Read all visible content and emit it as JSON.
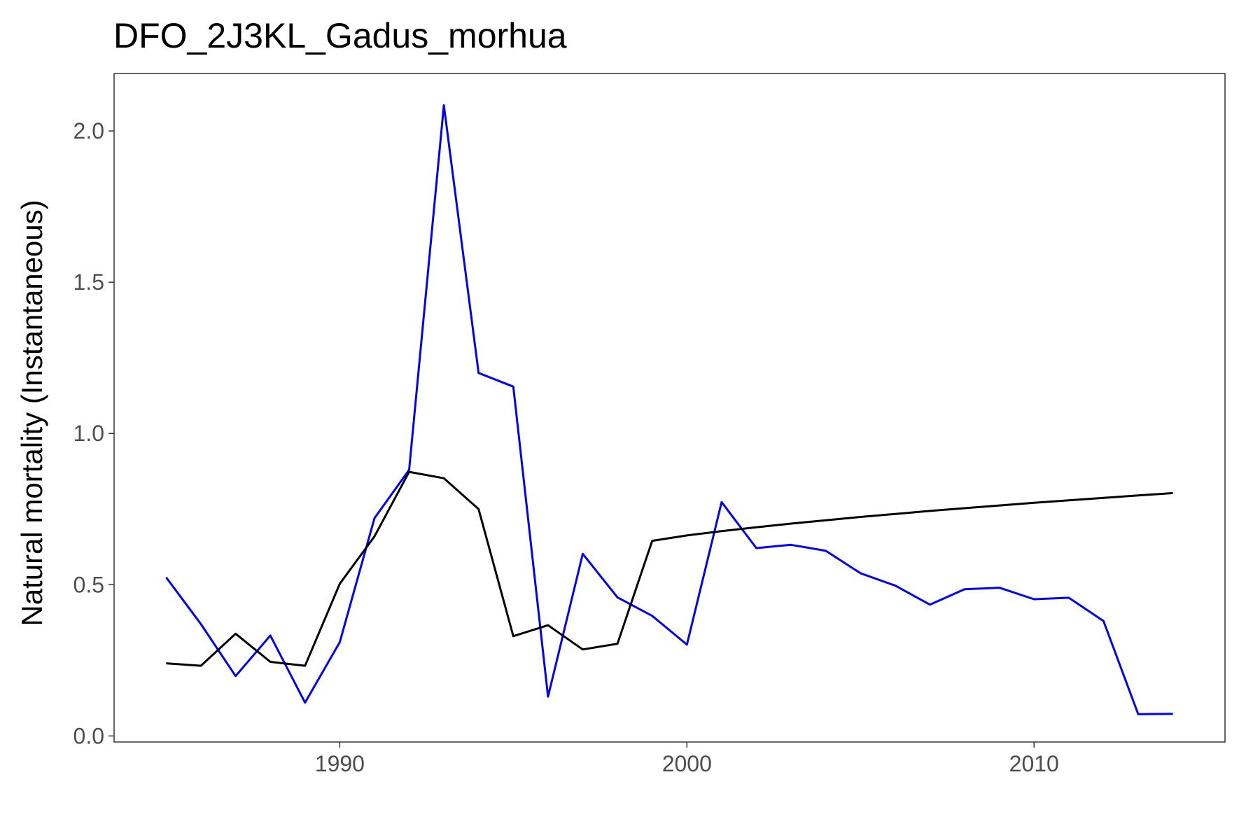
{
  "chart_data": {
    "type": "line",
    "title": "DFO_2J3KL_Gadus_morhua",
    "xlabel": "",
    "ylabel": "Natural mortality (Instantaneous)",
    "xlim": [
      1983.5,
      2015.5
    ],
    "ylim": [
      -0.02,
      2.19
    ],
    "x_ticks": [
      1990,
      2000,
      2010
    ],
    "y_ticks": [
      0.0,
      0.5,
      1.0,
      1.5,
      2.0
    ],
    "x_tick_labels": [
      "1990",
      "2000",
      "2010"
    ],
    "y_tick_labels": [
      "0.0",
      "0.5",
      "1.0",
      "1.5",
      "2.0"
    ],
    "grid": false,
    "legend": "none",
    "x": [
      1985,
      1986,
      1987,
      1988,
      1989,
      1990,
      1991,
      1992,
      1993,
      1994,
      1995,
      1996,
      1997,
      1998,
      1999,
      2000,
      2001,
      2002,
      2003,
      2004,
      2005,
      2006,
      2007,
      2008,
      2009,
      2010,
      2011,
      2012,
      2013,
      2014
    ],
    "series": [
      {
        "color": "#0000ff",
        "values": [
          0.524,
          0.37,
          0.198,
          0.332,
          0.11,
          0.31,
          0.72,
          0.88,
          2.085,
          1.2,
          1.155,
          0.13,
          0.602,
          0.458,
          0.397,
          0.302,
          0.773,
          0.621,
          0.632,
          0.612,
          0.538,
          0.497,
          0.434,
          0.485,
          0.49,
          0.452,
          0.457,
          0.38,
          0.072,
          0.073
        ]
      },
      {
        "color": "#000000",
        "values": [
          0.24,
          0.232,
          0.338,
          0.245,
          0.232,
          0.503,
          0.66,
          0.873,
          0.852,
          0.75,
          0.33,
          0.366,
          0.286,
          0.305,
          0.645,
          0.663,
          0.677,
          0.69,
          0.702,
          0.713,
          0.724,
          0.734,
          0.744,
          0.753,
          0.762,
          0.771,
          0.779,
          0.787,
          0.795,
          0.803
        ]
      }
    ]
  }
}
